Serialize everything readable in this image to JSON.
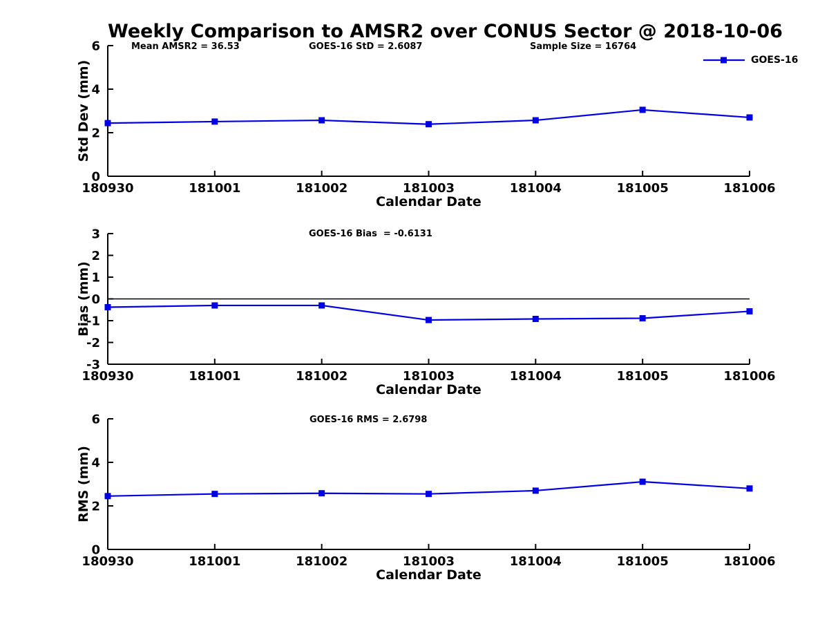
{
  "colors": {
    "series": "#0000e6",
    "axis": "#000000",
    "text": "#000000",
    "background": "#ffffff"
  },
  "chart_data": [
    {
      "type": "line",
      "name": "std-dev",
      "title": "Weekly Comparison to AMSR2 over CONUS Sector @ 2018-10-06",
      "ylabel": "Std Dev (mm)",
      "xlabel": "Calendar Date",
      "categories": [
        "180930",
        "181001",
        "181002",
        "181003",
        "181004",
        "181005",
        "181006"
      ],
      "series": [
        {
          "name": "GOES-16",
          "marker": "filled-square",
          "values": [
            2.44,
            2.51,
            2.57,
            2.39,
            2.57,
            3.05,
            2.7
          ]
        }
      ],
      "ylim": [
        0,
        6
      ],
      "yticks": [
        0,
        2,
        4,
        6
      ],
      "zero_line": false,
      "grid": false,
      "legend": {
        "label": "GOES-16",
        "position": "outside-top-right"
      },
      "annotations": [
        {
          "text": "Mean AMSR2 = 36.53"
        },
        {
          "text": "GOES-16 StD = 2.6087"
        },
        {
          "text": "Sample Size = 16764"
        }
      ]
    },
    {
      "type": "line",
      "name": "bias",
      "title": "",
      "ylabel": "Bias (mm)",
      "xlabel": "Calendar Date",
      "categories": [
        "180930",
        "181001",
        "181002",
        "181003",
        "181004",
        "181005",
        "181006"
      ],
      "series": [
        {
          "name": "GOES-16",
          "marker": "filled-square",
          "values": [
            -0.38,
            -0.3,
            -0.3,
            -0.97,
            -0.92,
            -0.89,
            -0.57
          ]
        }
      ],
      "ylim": [
        -3,
        3
      ],
      "yticks": [
        -3,
        -2,
        -1,
        0,
        1,
        2,
        3
      ],
      "zero_line": true,
      "grid": false,
      "annotations": [
        {
          "text": "GOES-16 Bias  = -0.6131"
        }
      ]
    },
    {
      "type": "line",
      "name": "rms",
      "title": "",
      "ylabel": "RMS (mm)",
      "xlabel": "Calendar Date",
      "categories": [
        "180930",
        "181001",
        "181002",
        "181003",
        "181004",
        "181005",
        "181006"
      ],
      "series": [
        {
          "name": "GOES-16",
          "marker": "filled-square",
          "values": [
            2.45,
            2.55,
            2.58,
            2.55,
            2.7,
            3.11,
            2.8
          ]
        }
      ],
      "ylim": [
        0,
        6
      ],
      "yticks": [
        0,
        2,
        4,
        6
      ],
      "zero_line": false,
      "grid": false,
      "annotations": [
        {
          "text": "GOES-16 RMS = 2.6798"
        }
      ]
    }
  ]
}
